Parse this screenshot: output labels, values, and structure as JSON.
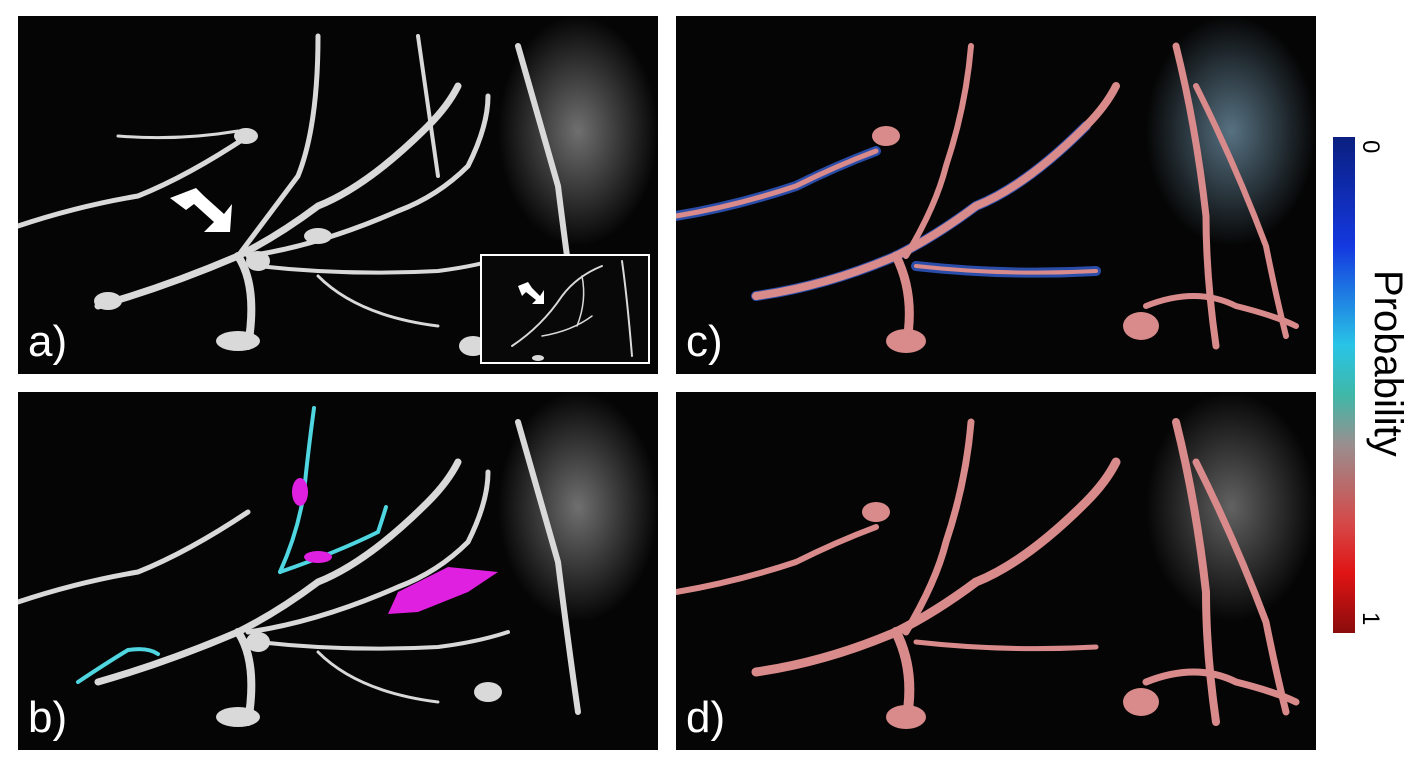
{
  "figure": {
    "panels": [
      {
        "label": "a)",
        "overlay": "none"
      },
      {
        "label": "b)",
        "overlay": "partial tracing"
      },
      {
        "label": "c)",
        "overlay": "probability"
      },
      {
        "label": "d)",
        "overlay": "probability"
      }
    ],
    "colorbar": {
      "title": "Probability",
      "min_label": "0",
      "max_label": "1"
    }
  },
  "colors": {
    "background": "#050505",
    "neuron": "#d9d9d9",
    "trace_cyan": "#4fd6e0",
    "trace_magenta": "#e020e0",
    "prob_high": "#d98a8a",
    "prob_low": "#3a6cf0"
  }
}
